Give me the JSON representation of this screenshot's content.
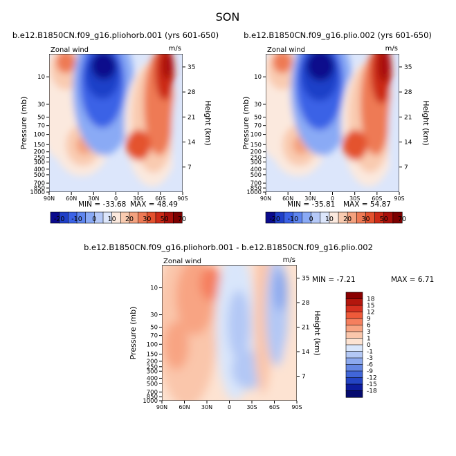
{
  "figure_title": "SON",
  "chart_data": [
    {
      "type": "heatmap",
      "title": "b.e12.B1850CN.f09_g16.pliohorb.001 (yrs 601-650)",
      "left_label": "Zonal wind",
      "right_label": "m/s",
      "ylabel": "Pressure (mb)",
      "ylabel_right": "Height (km)",
      "x_ticks": [
        "90N",
        "60N",
        "30N",
        "0",
        "30S",
        "60S",
        "90S"
      ],
      "y_ticks": [
        "10",
        "30",
        "50",
        "70",
        "100",
        "150",
        "200",
        "250",
        "300",
        "400",
        "500",
        "700",
        "850",
        "1000"
      ],
      "height_ticks": [
        "35",
        "28",
        "21",
        "14",
        "7"
      ],
      "min_label": "MIN = -33.68",
      "max_label": "MAX = 48.49",
      "min": -33.68,
      "max": 48.49,
      "colorbar_labels": [
        "-20",
        "-10",
        "0",
        "10",
        "20",
        "30",
        "50",
        "70"
      ],
      "colorbar_orientation": "horizontal",
      "colors": [
        "#0a0a8c",
        "#1f3fc8",
        "#3b62e6",
        "#5f86f0",
        "#8aaaf5",
        "#b5c9f8",
        "#dce6fb",
        "#fbe9de",
        "#f9cbb0",
        "#f4a27f",
        "#ee7a55",
        "#e4522f",
        "#cc2a17",
        "#a80f0a",
        "#7c0000"
      ]
    },
    {
      "type": "heatmap",
      "title": "b.e12.B1850CN.f09_g16.plio.002 (yrs 601-650)",
      "left_label": "Zonal wind",
      "right_label": "m/s",
      "ylabel": "Pressure (mb)",
      "ylabel_right": "Height (km)",
      "x_ticks": [
        "90N",
        "60N",
        "30N",
        "0",
        "30S",
        "60S",
        "90S"
      ],
      "y_ticks": [
        "10",
        "30",
        "50",
        "70",
        "100",
        "150",
        "200",
        "250",
        "300",
        "400",
        "500",
        "700",
        "850",
        "1000"
      ],
      "height_ticks": [
        "35",
        "28",
        "21",
        "14",
        "7"
      ],
      "min_label": "MIN = -35.81",
      "max_label": "MAX = 54.87",
      "min": -35.81,
      "max": 54.87,
      "colorbar_labels": [
        "-20",
        "-10",
        "0",
        "10",
        "20",
        "30",
        "50",
        "70"
      ],
      "colorbar_orientation": "horizontal",
      "colors": [
        "#0a0a8c",
        "#1f3fc8",
        "#3b62e6",
        "#5f86f0",
        "#8aaaf5",
        "#b5c9f8",
        "#dce6fb",
        "#fbe9de",
        "#f9cbb0",
        "#f4a27f",
        "#ee7a55",
        "#e4522f",
        "#cc2a17",
        "#a80f0a",
        "#7c0000"
      ]
    },
    {
      "type": "heatmap",
      "title": "b.e12.B1850CN.f09_g16.pliohorb.001 - b.e12.B1850CN.f09_g16.plio.002",
      "left_label": "Zonal wind",
      "right_label": "m/s",
      "ylabel": "Pressure (mb)",
      "ylabel_right": "Height (km)",
      "x_ticks": [
        "90N",
        "60N",
        "30N",
        "0",
        "30S",
        "60S",
        "90S"
      ],
      "y_ticks": [
        "10",
        "30",
        "50",
        "70",
        "100",
        "150",
        "200",
        "250",
        "300",
        "400",
        "500",
        "700",
        "850",
        "1000"
      ],
      "height_ticks": [
        "35",
        "28",
        "21",
        "14",
        "7"
      ],
      "min_label": "MIN = -7.21",
      "max_label": "MAX = 6.71",
      "min": -7.21,
      "max": 6.71,
      "colorbar_labels": [
        "18",
        "15",
        "12",
        "9",
        "6",
        "3",
        "1",
        "0",
        "-1",
        "-3",
        "-6",
        "-9",
        "-12",
        "-15",
        "-18"
      ],
      "colorbar_orientation": "vertical",
      "colors": [
        "#8a0000",
        "#b3160d",
        "#d63020",
        "#ee5a3a",
        "#f57f5e",
        "#f8a483",
        "#fac6ab",
        "#fde3d2",
        "#d9e6fb",
        "#b3c8f5",
        "#8ca9ee",
        "#6587e3",
        "#4166d8",
        "#2444c4",
        "#0d1c9e",
        "#050a6e"
      ]
    }
  ]
}
